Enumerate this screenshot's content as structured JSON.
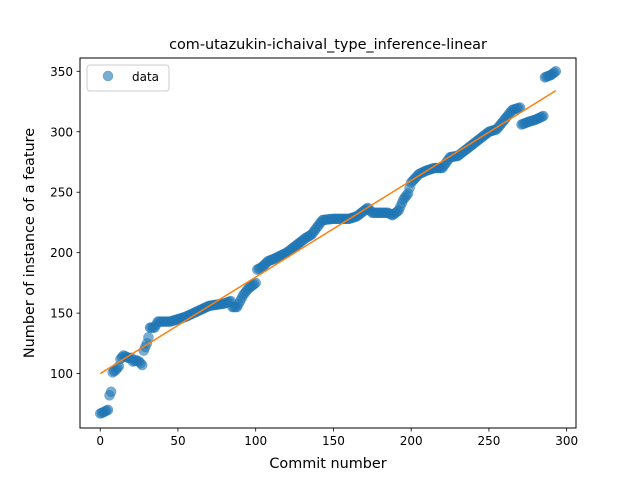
{
  "chart_data": {
    "type": "scatter",
    "title": "com-utazukin-ichaival_type_inference-linear",
    "xlabel": "Commit number",
    "ylabel": "Number of instance of a feature",
    "xlim": [
      -13,
      306
    ],
    "ylim": [
      55,
      361
    ],
    "xticks": [
      0,
      50,
      100,
      150,
      200,
      250,
      300
    ],
    "yticks": [
      100,
      150,
      200,
      250,
      300,
      350
    ],
    "legend": {
      "position": "top-left",
      "entries": [
        "data"
      ]
    },
    "grid": false,
    "colors": {
      "points": "#1f77b4",
      "fit": "#ff7f0e"
    },
    "series": [
      {
        "name": "data",
        "kind": "points",
        "anchors": [
          [
            0,
            67
          ],
          [
            2,
            68
          ],
          [
            5,
            70
          ],
          [
            6,
            82
          ],
          [
            7,
            85
          ],
          [
            8,
            101
          ],
          [
            10,
            103
          ],
          [
            12,
            106
          ],
          [
            13,
            112
          ],
          [
            15,
            115
          ],
          [
            18,
            113
          ],
          [
            20,
            113
          ],
          [
            21,
            110
          ],
          [
            23,
            111
          ],
          [
            25,
            110
          ],
          [
            27,
            107
          ],
          [
            28,
            119
          ],
          [
            30,
            125
          ],
          [
            31,
            130
          ],
          [
            32,
            138
          ],
          [
            35,
            138
          ],
          [
            37,
            143
          ],
          [
            42,
            143
          ],
          [
            45,
            143
          ],
          [
            50,
            145
          ],
          [
            55,
            147
          ],
          [
            60,
            150
          ],
          [
            65,
            153
          ],
          [
            70,
            156
          ],
          [
            80,
            158
          ],
          [
            84,
            160
          ],
          [
            85,
            155
          ],
          [
            88,
            155
          ],
          [
            92,
            165
          ],
          [
            95,
            170
          ],
          [
            100,
            175
          ],
          [
            101,
            186
          ],
          [
            104,
            188
          ],
          [
            108,
            193
          ],
          [
            112,
            195
          ],
          [
            115,
            197
          ],
          [
            120,
            200
          ],
          [
            125,
            205
          ],
          [
            128,
            208
          ],
          [
            132,
            212
          ],
          [
            136,
            215
          ],
          [
            140,
            222
          ],
          [
            143,
            227
          ],
          [
            150,
            228
          ],
          [
            160,
            228
          ],
          [
            165,
            230
          ],
          [
            170,
            235
          ],
          [
            172,
            237
          ],
          [
            175,
            233
          ],
          [
            185,
            233
          ],
          [
            188,
            231
          ],
          [
            192,
            235
          ],
          [
            195,
            244
          ],
          [
            198,
            249
          ],
          [
            200,
            258
          ],
          [
            205,
            265
          ],
          [
            210,
            268
          ],
          [
            215,
            270
          ],
          [
            220,
            270
          ],
          [
            225,
            279
          ],
          [
            230,
            280
          ],
          [
            235,
            285
          ],
          [
            240,
            290
          ],
          [
            245,
            295
          ],
          [
            250,
            300
          ],
          [
            255,
            302
          ],
          [
            260,
            310
          ],
          [
            265,
            318
          ],
          [
            270,
            320
          ],
          [
            271,
            306
          ],
          [
            275,
            308
          ],
          [
            280,
            310
          ],
          [
            285,
            313
          ],
          [
            286,
            345
          ],
          [
            290,
            347
          ],
          [
            293,
            350
          ]
        ]
      },
      {
        "name": "linear fit",
        "kind": "line",
        "points": [
          [
            0,
            100
          ],
          [
            293,
            334
          ]
        ]
      }
    ]
  }
}
